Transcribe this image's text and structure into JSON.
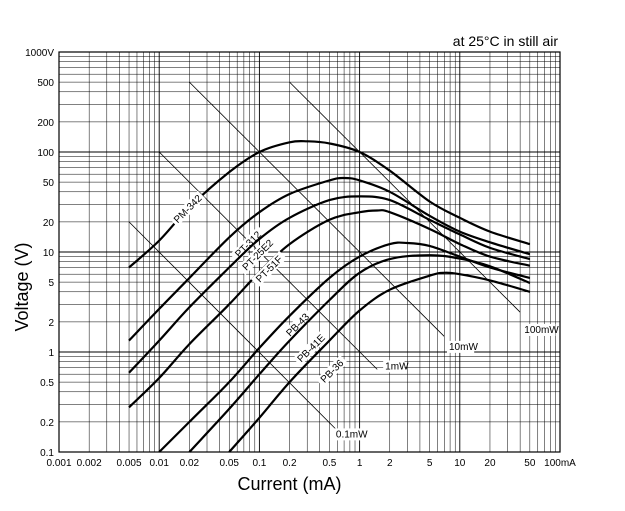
{
  "chart_data": {
    "type": "line",
    "title": "at 25°C in still air",
    "xlabel": "Current (mA)",
    "ylabel": "Voltage (V)",
    "x_scale": "log",
    "y_scale": "log",
    "xlim": [
      0.001,
      100
    ],
    "ylim": [
      0.1,
      1000
    ],
    "grid": true,
    "x_tick_labels": [
      {
        "value": 0.001,
        "label": "0.001"
      },
      {
        "value": 0.002,
        "label": "0.002"
      },
      {
        "value": 0.005,
        "label": "0.005"
      },
      {
        "value": 0.01,
        "label": "0.01"
      },
      {
        "value": 0.02,
        "label": "0.02"
      },
      {
        "value": 0.05,
        "label": "0.05"
      },
      {
        "value": 0.1,
        "label": "0.1"
      },
      {
        "value": 0.2,
        "label": "0.2"
      },
      {
        "value": 0.5,
        "label": "0.5"
      },
      {
        "value": 1,
        "label": "1"
      },
      {
        "value": 2,
        "label": "2"
      },
      {
        "value": 5,
        "label": "5"
      },
      {
        "value": 10,
        "label": "10"
      },
      {
        "value": 20,
        "label": "20"
      },
      {
        "value": 50,
        "label": "50"
      },
      {
        "value": 100,
        "label": "100mA"
      }
    ],
    "y_tick_labels": [
      {
        "value": 1000,
        "label": "1000V"
      },
      {
        "value": 500,
        "label": "500"
      },
      {
        "value": 200,
        "label": "200"
      },
      {
        "value": 100,
        "label": "100"
      },
      {
        "value": 50,
        "label": "50"
      },
      {
        "value": 20,
        "label": "20"
      },
      {
        "value": 10,
        "label": "10"
      },
      {
        "value": 5,
        "label": "5"
      },
      {
        "value": 2,
        "label": "2"
      },
      {
        "value": 1,
        "label": "1"
      },
      {
        "value": 0.5,
        "label": "0.5"
      },
      {
        "value": 0.2,
        "label": "0.2"
      },
      {
        "value": 0.1,
        "label": "0.1"
      }
    ],
    "series": [
      {
        "name": "PM-342",
        "label_at": [
          0.02,
          26
        ],
        "points": [
          [
            0.005,
            7
          ],
          [
            0.01,
            13
          ],
          [
            0.02,
            28
          ],
          [
            0.05,
            63
          ],
          [
            0.1,
            100
          ],
          [
            0.2,
            125
          ],
          [
            0.3,
            128
          ],
          [
            0.5,
            122
          ],
          [
            1,
            100
          ],
          [
            2,
            65
          ],
          [
            5,
            32
          ],
          [
            10,
            22
          ],
          [
            20,
            16
          ],
          [
            50,
            12
          ]
        ]
      },
      {
        "name": "PT-312",
        "label_at": [
          0.08,
          11.5
        ],
        "points": [
          [
            0.005,
            1.3
          ],
          [
            0.01,
            2.7
          ],
          [
            0.02,
            5.5
          ],
          [
            0.05,
            14
          ],
          [
            0.1,
            25
          ],
          [
            0.2,
            38
          ],
          [
            0.5,
            52
          ],
          [
            0.7,
            55
          ],
          [
            1,
            52
          ],
          [
            2,
            40
          ],
          [
            5,
            23
          ],
          [
            10,
            16
          ],
          [
            20,
            12.5
          ],
          [
            50,
            9.5
          ]
        ]
      },
      {
        "name": "PT-25E2",
        "label_at": [
          0.1,
          9
        ],
        "points": [
          [
            0.005,
            0.62
          ],
          [
            0.01,
            1.3
          ],
          [
            0.02,
            2.8
          ],
          [
            0.05,
            7
          ],
          [
            0.1,
            13.5
          ],
          [
            0.2,
            22
          ],
          [
            0.5,
            33
          ],
          [
            1,
            36
          ],
          [
            2,
            33
          ],
          [
            5,
            21
          ],
          [
            10,
            15
          ],
          [
            20,
            11
          ],
          [
            50,
            8.5
          ]
        ]
      },
      {
        "name": "PT-51F",
        "label_at": [
          0.13,
          6.5
        ],
        "points": [
          [
            0.005,
            0.28
          ],
          [
            0.01,
            0.55
          ],
          [
            0.02,
            1.2
          ],
          [
            0.05,
            3
          ],
          [
            0.1,
            6.3
          ],
          [
            0.2,
            12
          ],
          [
            0.5,
            21
          ],
          [
            1,
            25
          ],
          [
            1.5,
            26
          ],
          [
            2,
            25
          ],
          [
            5,
            17
          ],
          [
            10,
            12
          ],
          [
            20,
            9
          ],
          [
            50,
            7.3
          ]
        ]
      },
      {
        "name": "PB-43",
        "label_at": [
          0.25,
          1.8
        ],
        "points": [
          [
            0.01,
            0.1
          ],
          [
            0.02,
            0.2
          ],
          [
            0.05,
            0.5
          ],
          [
            0.1,
            1.1
          ],
          [
            0.2,
            2.3
          ],
          [
            0.5,
            5.5
          ],
          [
            1,
            9
          ],
          [
            2,
            12
          ],
          [
            3,
            12.3
          ],
          [
            5,
            11.5
          ],
          [
            10,
            9
          ],
          [
            20,
            7
          ],
          [
            50,
            5.5
          ]
        ]
      },
      {
        "name": "PB-41E",
        "label_at": [
          0.34,
          1.05
        ],
        "points": [
          [
            0.02,
            0.1
          ],
          [
            0.05,
            0.27
          ],
          [
            0.1,
            0.6
          ],
          [
            0.2,
            1.3
          ],
          [
            0.5,
            3.3
          ],
          [
            1,
            6.2
          ],
          [
            2,
            8.5
          ],
          [
            5,
            9.3
          ],
          [
            10,
            8.6
          ],
          [
            20,
            7.2
          ],
          [
            50,
            4.9
          ]
        ]
      },
      {
        "name": "PB-36",
        "label_at": [
          0.55,
          0.62
        ],
        "points": [
          [
            0.05,
            0.1
          ],
          [
            0.1,
            0.22
          ],
          [
            0.2,
            0.5
          ],
          [
            0.5,
            1.3
          ],
          [
            1,
            2.6
          ],
          [
            2,
            4.2
          ],
          [
            5,
            5.8
          ],
          [
            7,
            6.2
          ],
          [
            10,
            6
          ],
          [
            20,
            5.2
          ],
          [
            50,
            4
          ]
        ]
      }
    ],
    "power_lines": [
      {
        "name": "0.1mW",
        "label_at": [
          0.58,
          0.14
        ],
        "points": [
          [
            0.005,
            20
          ],
          [
            0.7,
            0.14
          ]
        ]
      },
      {
        "name": "1mW",
        "label_at": [
          1.8,
          0.67
        ],
        "points": [
          [
            0.01,
            100
          ],
          [
            1.5,
            0.67
          ]
        ]
      },
      {
        "name": "10mW",
        "label_at": [
          7.8,
          1.05
        ],
        "points": [
          [
            0.02,
            500
          ],
          [
            7,
            1.43
          ]
        ]
      },
      {
        "name": "100mW",
        "label_at": [
          44,
          1.55
        ],
        "points": [
          [
            0.2,
            500
          ],
          [
            40,
            2.5
          ]
        ]
      }
    ]
  }
}
